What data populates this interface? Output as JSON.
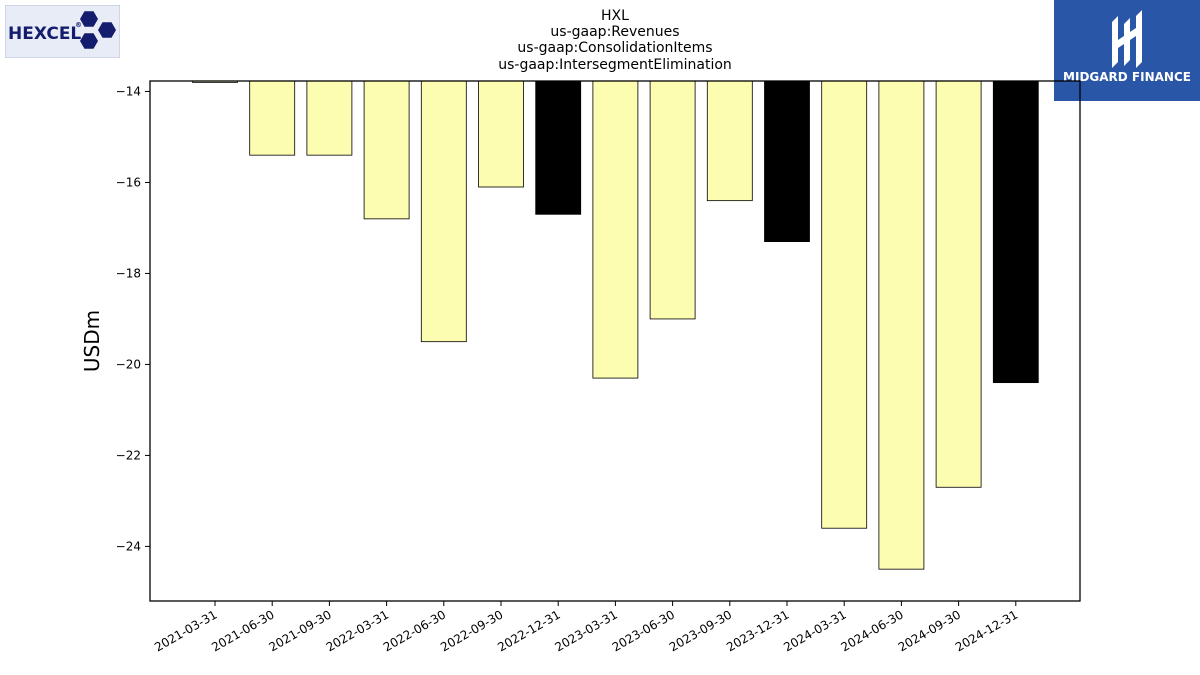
{
  "logos": {
    "left": {
      "text": "HEXCEL",
      "registered": "®",
      "text_color": "#141c6e",
      "hex_color": "#141c6e",
      "bg": "#e8ecf6"
    },
    "right": {
      "text": "MIDGARD FINANCE",
      "bg": "#2a56a8",
      "fg": "#ffffff"
    }
  },
  "chart_data": {
    "type": "bar",
    "title_lines": [
      "HXL",
      "us-gaap:Revenues",
      "us-gaap:ConsolidationItems",
      "us-gaap:IntersegmentElimination"
    ],
    "ylabel": "USDm",
    "xlabel": "",
    "categories": [
      "2021-03-31",
      "2021-06-30",
      "2021-09-30",
      "2022-03-31",
      "2022-06-30",
      "2022-09-30",
      "2022-12-31",
      "2023-03-31",
      "2023-06-30",
      "2023-09-30",
      "2023-12-31",
      "2024-03-31",
      "2024-06-30",
      "2024-09-30",
      "2024-12-31"
    ],
    "values": [
      -13.8,
      -15.4,
      -15.4,
      -16.8,
      -19.5,
      -16.1,
      -16.7,
      -20.3,
      -19.0,
      -16.4,
      -17.3,
      -23.6,
      -24.5,
      -22.7,
      -20.4
    ],
    "bar_colors": [
      "#fdfdb2",
      "#fdfdb2",
      "#fdfdb2",
      "#fdfdb2",
      "#fdfdb2",
      "#fdfdb2",
      "#000000",
      "#fdfdb2",
      "#fdfdb2",
      "#fdfdb2",
      "#000000",
      "#fdfdb2",
      "#fdfdb2",
      "#fdfdb2",
      "#000000"
    ],
    "ylim": [
      -25.2,
      -13.77
    ],
    "yticks": [
      -14,
      -16,
      -18,
      -20,
      -22,
      -24
    ],
    "grid": false
  }
}
